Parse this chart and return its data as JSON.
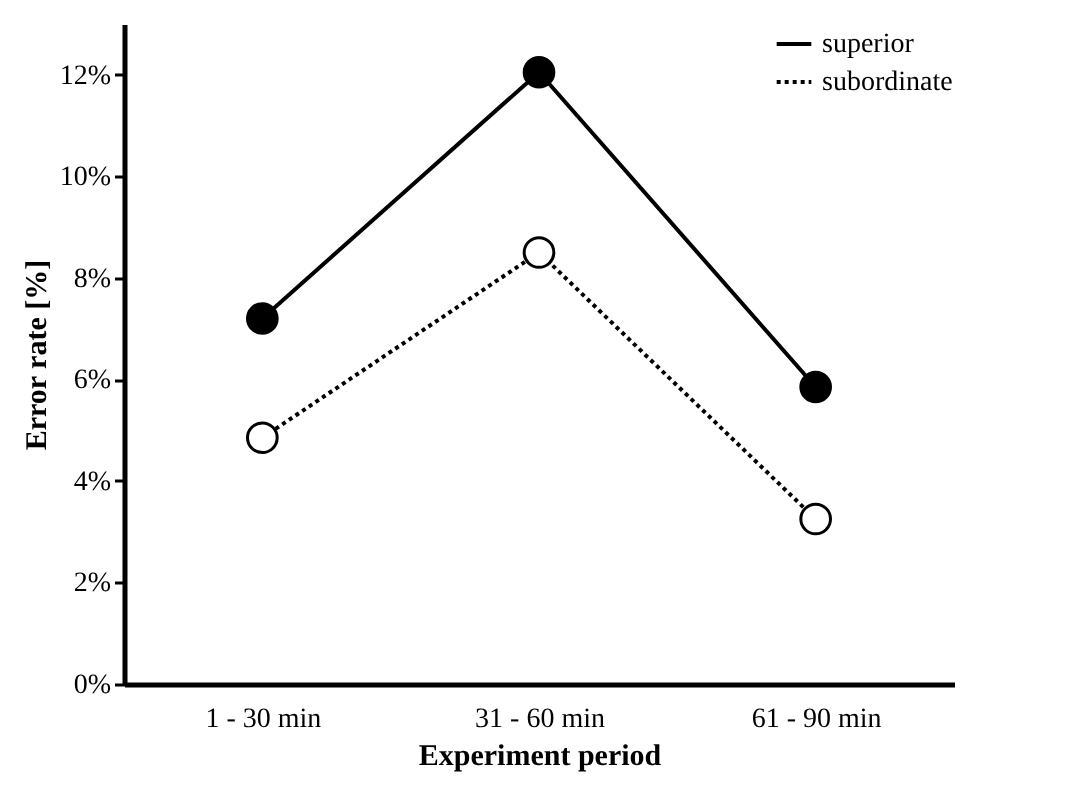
{
  "chart_data": {
    "type": "line",
    "xlabel": "Experiment period",
    "ylabel": "Error rate [%]",
    "categories": [
      "1 - 30 min",
      "31 - 60 min",
      "61 - 90 min"
    ],
    "series": [
      {
        "name": "superior",
        "color": "#000000",
        "values": [
          7.2,
          12.05,
          5.85
        ],
        "line_style": "solid"
      },
      {
        "name": "subordinate",
        "color": "#000000",
        "values": [
          4.85,
          8.5,
          3.25
        ],
        "line_style": "dotted"
      }
    ],
    "ylim": [
      0,
      13
    ],
    "yticks": [
      {
        "value": 0,
        "label": "0%"
      },
      {
        "value": 2,
        "label": "2%"
      },
      {
        "value": 4,
        "label": "4%"
      },
      {
        "value": 6,
        "label": "6%"
      },
      {
        "value": 8,
        "label": "8%"
      },
      {
        "value": 10,
        "label": "10%"
      },
      {
        "value": 12,
        "label": "12%"
      }
    ],
    "marker": "circle",
    "grid": false,
    "legend": "top right"
  }
}
